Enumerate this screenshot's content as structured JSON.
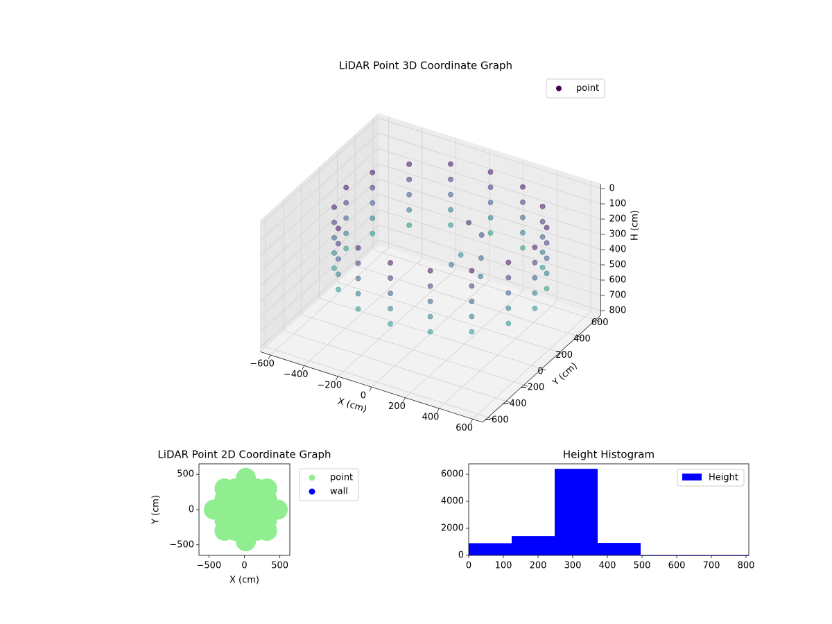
{
  "chart_data": [
    {
      "type": "scatter3d",
      "title": "LiDAR Point 3D Coordinate Graph",
      "xlabel": "X (cm)",
      "ylabel": "Y (cm)",
      "zlabel": "H (cm)",
      "xlim": [
        -660,
        660
      ],
      "ylim": [
        -660,
        660
      ],
      "zlim": [
        -30,
        830
      ],
      "xticks": [
        {
          "value": -600,
          "label": "−600"
        },
        {
          "value": -400,
          "label": "−400"
        },
        {
          "value": -200,
          "label": "−200"
        },
        0,
        200,
        400,
        600
      ],
      "yticks": [
        {
          "value": -600,
          "label": "−600"
        },
        {
          "value": -400,
          "label": "−400"
        },
        {
          "value": -200,
          "label": "−200"
        },
        0,
        200,
        400,
        600
      ],
      "zticks": [
        0,
        100,
        200,
        300,
        400,
        500,
        600,
        700,
        800
      ],
      "zinverted": true,
      "grid": true,
      "legend": "upper right",
      "colormap": "viridis",
      "series": [
        {
          "name": "point",
          "color": "#440154",
          "x": [
            640,
            640,
            640,
            640,
            640,
            597,
            597,
            597,
            597,
            597,
            476,
            476,
            476,
            476,
            476,
            294,
            294,
            294,
            294,
            294,
            80,
            80,
            80,
            80,
            80,
            -134,
            -134,
            -134,
            -134,
            -134,
            -316,
            -316,
            -316,
            -316,
            -316,
            -437,
            -437,
            -437,
            -437,
            -437,
            -480,
            -480,
            -480,
            -480,
            -480,
            -437,
            -437,
            -437,
            -437,
            -437,
            -316,
            -316,
            -316,
            -316,
            -316,
            -134,
            -134,
            -134,
            -134,
            -134,
            80,
            80,
            80,
            80,
            80,
            294,
            294,
            294,
            294,
            294,
            476,
            476,
            476,
            476,
            476,
            597,
            597,
            597,
            597,
            597,
            200,
            250,
            300,
            150,
            100,
            350
          ],
          "y": [
            -40,
            -40,
            -40,
            -40,
            -40,
            174,
            174,
            174,
            174,
            174,
            356,
            356,
            356,
            356,
            356,
            477,
            477,
            477,
            477,
            477,
            520,
            520,
            520,
            520,
            520,
            477,
            477,
            477,
            477,
            477,
            356,
            356,
            356,
            356,
            356,
            174,
            174,
            174,
            174,
            174,
            -40,
            -40,
            -40,
            -40,
            -40,
            -254,
            -254,
            -254,
            -254,
            -254,
            -436,
            -436,
            -436,
            -436,
            -436,
            -557,
            -557,
            -557,
            -557,
            -557,
            -600,
            -600,
            -600,
            -600,
            -600,
            -557,
            -557,
            -557,
            -557,
            -557,
            -436,
            -436,
            -436,
            -436,
            -436,
            -254,
            -254,
            -254,
            -254,
            -254,
            50,
            100,
            0,
            -50,
            150,
            -100
          ],
          "z": [
            20,
            120,
            220,
            320,
            420,
            20,
            120,
            220,
            320,
            420,
            20,
            120,
            220,
            320,
            420,
            20,
            120,
            220,
            320,
            420,
            20,
            120,
            220,
            320,
            420,
            20,
            120,
            220,
            320,
            420,
            20,
            120,
            220,
            320,
            420,
            20,
            120,
            220,
            320,
            420,
            20,
            120,
            220,
            320,
            420,
            20,
            120,
            220,
            320,
            420,
            20,
            120,
            220,
            320,
            420,
            20,
            120,
            220,
            320,
            420,
            20,
            120,
            220,
            320,
            420,
            20,
            120,
            220,
            320,
            420,
            20,
            120,
            220,
            320,
            420,
            20,
            120,
            220,
            320,
            420,
            60,
            150,
            230,
            300,
            360,
            280
          ]
        }
      ]
    },
    {
      "type": "scatter",
      "title": "LiDAR Point 2D Coordinate Graph",
      "xlabel": "X (cm)",
      "ylabel": "Y (cm)",
      "xlim": [
        -640,
        640
      ],
      "ylim": [
        -650,
        650
      ],
      "xticks": [
        {
          "value": -500,
          "label": "−500"
        },
        0,
        500
      ],
      "yticks": [
        {
          "value": -500,
          "label": "−500"
        },
        0,
        500
      ],
      "legend": "outside upper right",
      "series": [
        {
          "name": "point",
          "color": "#90ee90",
          "x": [
            -430,
            -280,
            -280,
            -280,
            -280,
            -280,
            -130,
            -130,
            -130,
            -130,
            -130,
            20,
            20,
            20,
            20,
            20,
            20,
            20,
            170,
            170,
            170,
            170,
            170,
            320,
            320,
            320,
            320,
            320,
            470
          ],
          "y": [
            0,
            -300,
            -150,
            0,
            150,
            300,
            -300,
            -150,
            0,
            150,
            300,
            -450,
            -300,
            -150,
            0,
            150,
            300,
            450,
            -300,
            -150,
            0,
            150,
            300,
            -300,
            -150,
            0,
            150,
            300,
            0
          ]
        },
        {
          "name": "wall",
          "color": "#0000ff",
          "x": [],
          "y": []
        }
      ]
    },
    {
      "type": "histogram",
      "title": "Height Histogram",
      "bins": [
        0,
        124,
        248,
        372,
        496,
        620,
        744,
        808
      ],
      "xlim": [
        0,
        808
      ],
      "ylim": [
        0,
        6770
      ],
      "xticks": [
        0,
        100,
        200,
        300,
        400,
        500,
        600,
        700,
        800
      ],
      "yticks": [
        0,
        2000,
        4000,
        6000
      ],
      "legend": "upper right",
      "series": [
        {
          "name": "Height",
          "color": "#0000ff",
          "values": [
            900,
            1430,
            6400,
            920,
            0,
            0,
            0
          ]
        }
      ]
    }
  ]
}
